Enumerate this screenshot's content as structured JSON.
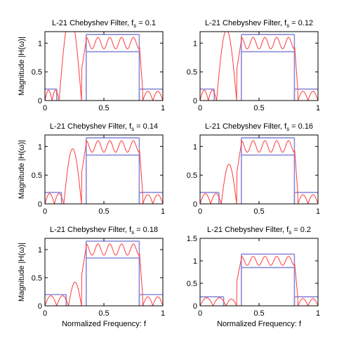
{
  "colors": {
    "response": "#ff3b3b",
    "mask": "#8a8ad8",
    "frame": "#000000"
  },
  "chart_data": [
    {
      "type": "line",
      "title": "L-21 Chebyshev Filter, f",
      "title_sub": "s",
      "title_tail": " = 0.1",
      "ylabel": "Magnitude |H(ω)|",
      "xlabel": "",
      "xlim": [
        0,
        1
      ],
      "ylim": [
        0,
        1.2
      ],
      "x_ticks": [
        "0",
        "0.5",
        "1"
      ],
      "y_ticks": [
        "0",
        "0.5",
        "1"
      ],
      "fs": 0.1,
      "mask": {
        "stop1": [
          0,
          0.1
        ],
        "stop2": [
          0.8,
          1
        ],
        "pass": [
          0.35,
          0.8
        ],
        "stop_level": 0.2,
        "pass_lo": 0.85,
        "pass_hi": 1.15
      }
    },
    {
      "type": "line",
      "title": "L-21 Chebyshev Filter, f",
      "title_sub": "s",
      "title_tail": " = 0.12",
      "ylabel": "",
      "xlabel": "",
      "xlim": [
        0,
        1
      ],
      "ylim": [
        0,
        1.2
      ],
      "x_ticks": [
        "0",
        "0.5",
        "1"
      ],
      "y_ticks": [
        "0",
        "0.5",
        "1"
      ],
      "fs": 0.12,
      "mask": {
        "stop1": [
          0,
          0.12
        ],
        "stop2": [
          0.8,
          1
        ],
        "pass": [
          0.35,
          0.8
        ],
        "stop_level": 0.2,
        "pass_lo": 0.85,
        "pass_hi": 1.15
      }
    },
    {
      "type": "line",
      "title": "L-21 Chebyshev Filter, f",
      "title_sub": "s",
      "title_tail": " = 0.14",
      "ylabel": "Magnitude |H(ω)|",
      "xlabel": "",
      "xlim": [
        0,
        1
      ],
      "ylim": [
        0,
        1.2
      ],
      "x_ticks": [
        "0",
        "0.5",
        "1"
      ],
      "y_ticks": [
        "0",
        "0.5",
        "1"
      ],
      "fs": 0.14,
      "mask": {
        "stop1": [
          0,
          0.14
        ],
        "stop2": [
          0.8,
          1
        ],
        "pass": [
          0.35,
          0.8
        ],
        "stop_level": 0.2,
        "pass_lo": 0.85,
        "pass_hi": 1.15
      }
    },
    {
      "type": "line",
      "title": "L-21 Chebyshev Filter, f",
      "title_sub": "s",
      "title_tail": " = 0.16",
      "ylabel": "",
      "xlabel": "",
      "xlim": [
        0,
        1
      ],
      "ylim": [
        0,
        1.2
      ],
      "x_ticks": [
        "0",
        "0.5",
        "1"
      ],
      "y_ticks": [
        "0",
        "0.5",
        "1"
      ],
      "fs": 0.16,
      "mask": {
        "stop1": [
          0,
          0.16
        ],
        "stop2": [
          0.8,
          1
        ],
        "pass": [
          0.35,
          0.8
        ],
        "stop_level": 0.2,
        "pass_lo": 0.85,
        "pass_hi": 1.15
      }
    },
    {
      "type": "line",
      "title": "L-21 Chebyshev Filter, f",
      "title_sub": "s",
      "title_tail": " = 0.18",
      "ylabel": "Magnitude |H(ω)|",
      "xlabel": "Normalized Frequency: f",
      "xlim": [
        0,
        1
      ],
      "ylim": [
        0,
        1.2
      ],
      "x_ticks": [
        "0",
        "0.5",
        "1"
      ],
      "y_ticks": [
        "0",
        "0.5",
        "1"
      ],
      "fs": 0.18,
      "mask": {
        "stop1": [
          0,
          0.18
        ],
        "stop2": [
          0.8,
          1
        ],
        "pass": [
          0.35,
          0.8
        ],
        "stop_level": 0.2,
        "pass_lo": 0.85,
        "pass_hi": 1.15
      }
    },
    {
      "type": "line",
      "title": "L-21 Chebyshev Filter, f",
      "title_sub": "s",
      "title_tail": " = 0.2",
      "ylabel": "",
      "xlabel": "Normalized Frequency: f",
      "xlim": [
        0,
        1
      ],
      "ylim": [
        0,
        1.5
      ],
      "x_ticks": [
        "0",
        "0.5",
        "1"
      ],
      "y_ticks": [
        "0",
        "0.5",
        "1",
        "1.5"
      ],
      "fs": 0.2,
      "mask": {
        "stop1": [
          0,
          0.2
        ],
        "stop2": [
          0.8,
          1
        ],
        "pass": [
          0.35,
          0.8
        ],
        "stop_level": 0.2,
        "pass_lo": 0.85,
        "pass_hi": 1.15
      }
    }
  ]
}
